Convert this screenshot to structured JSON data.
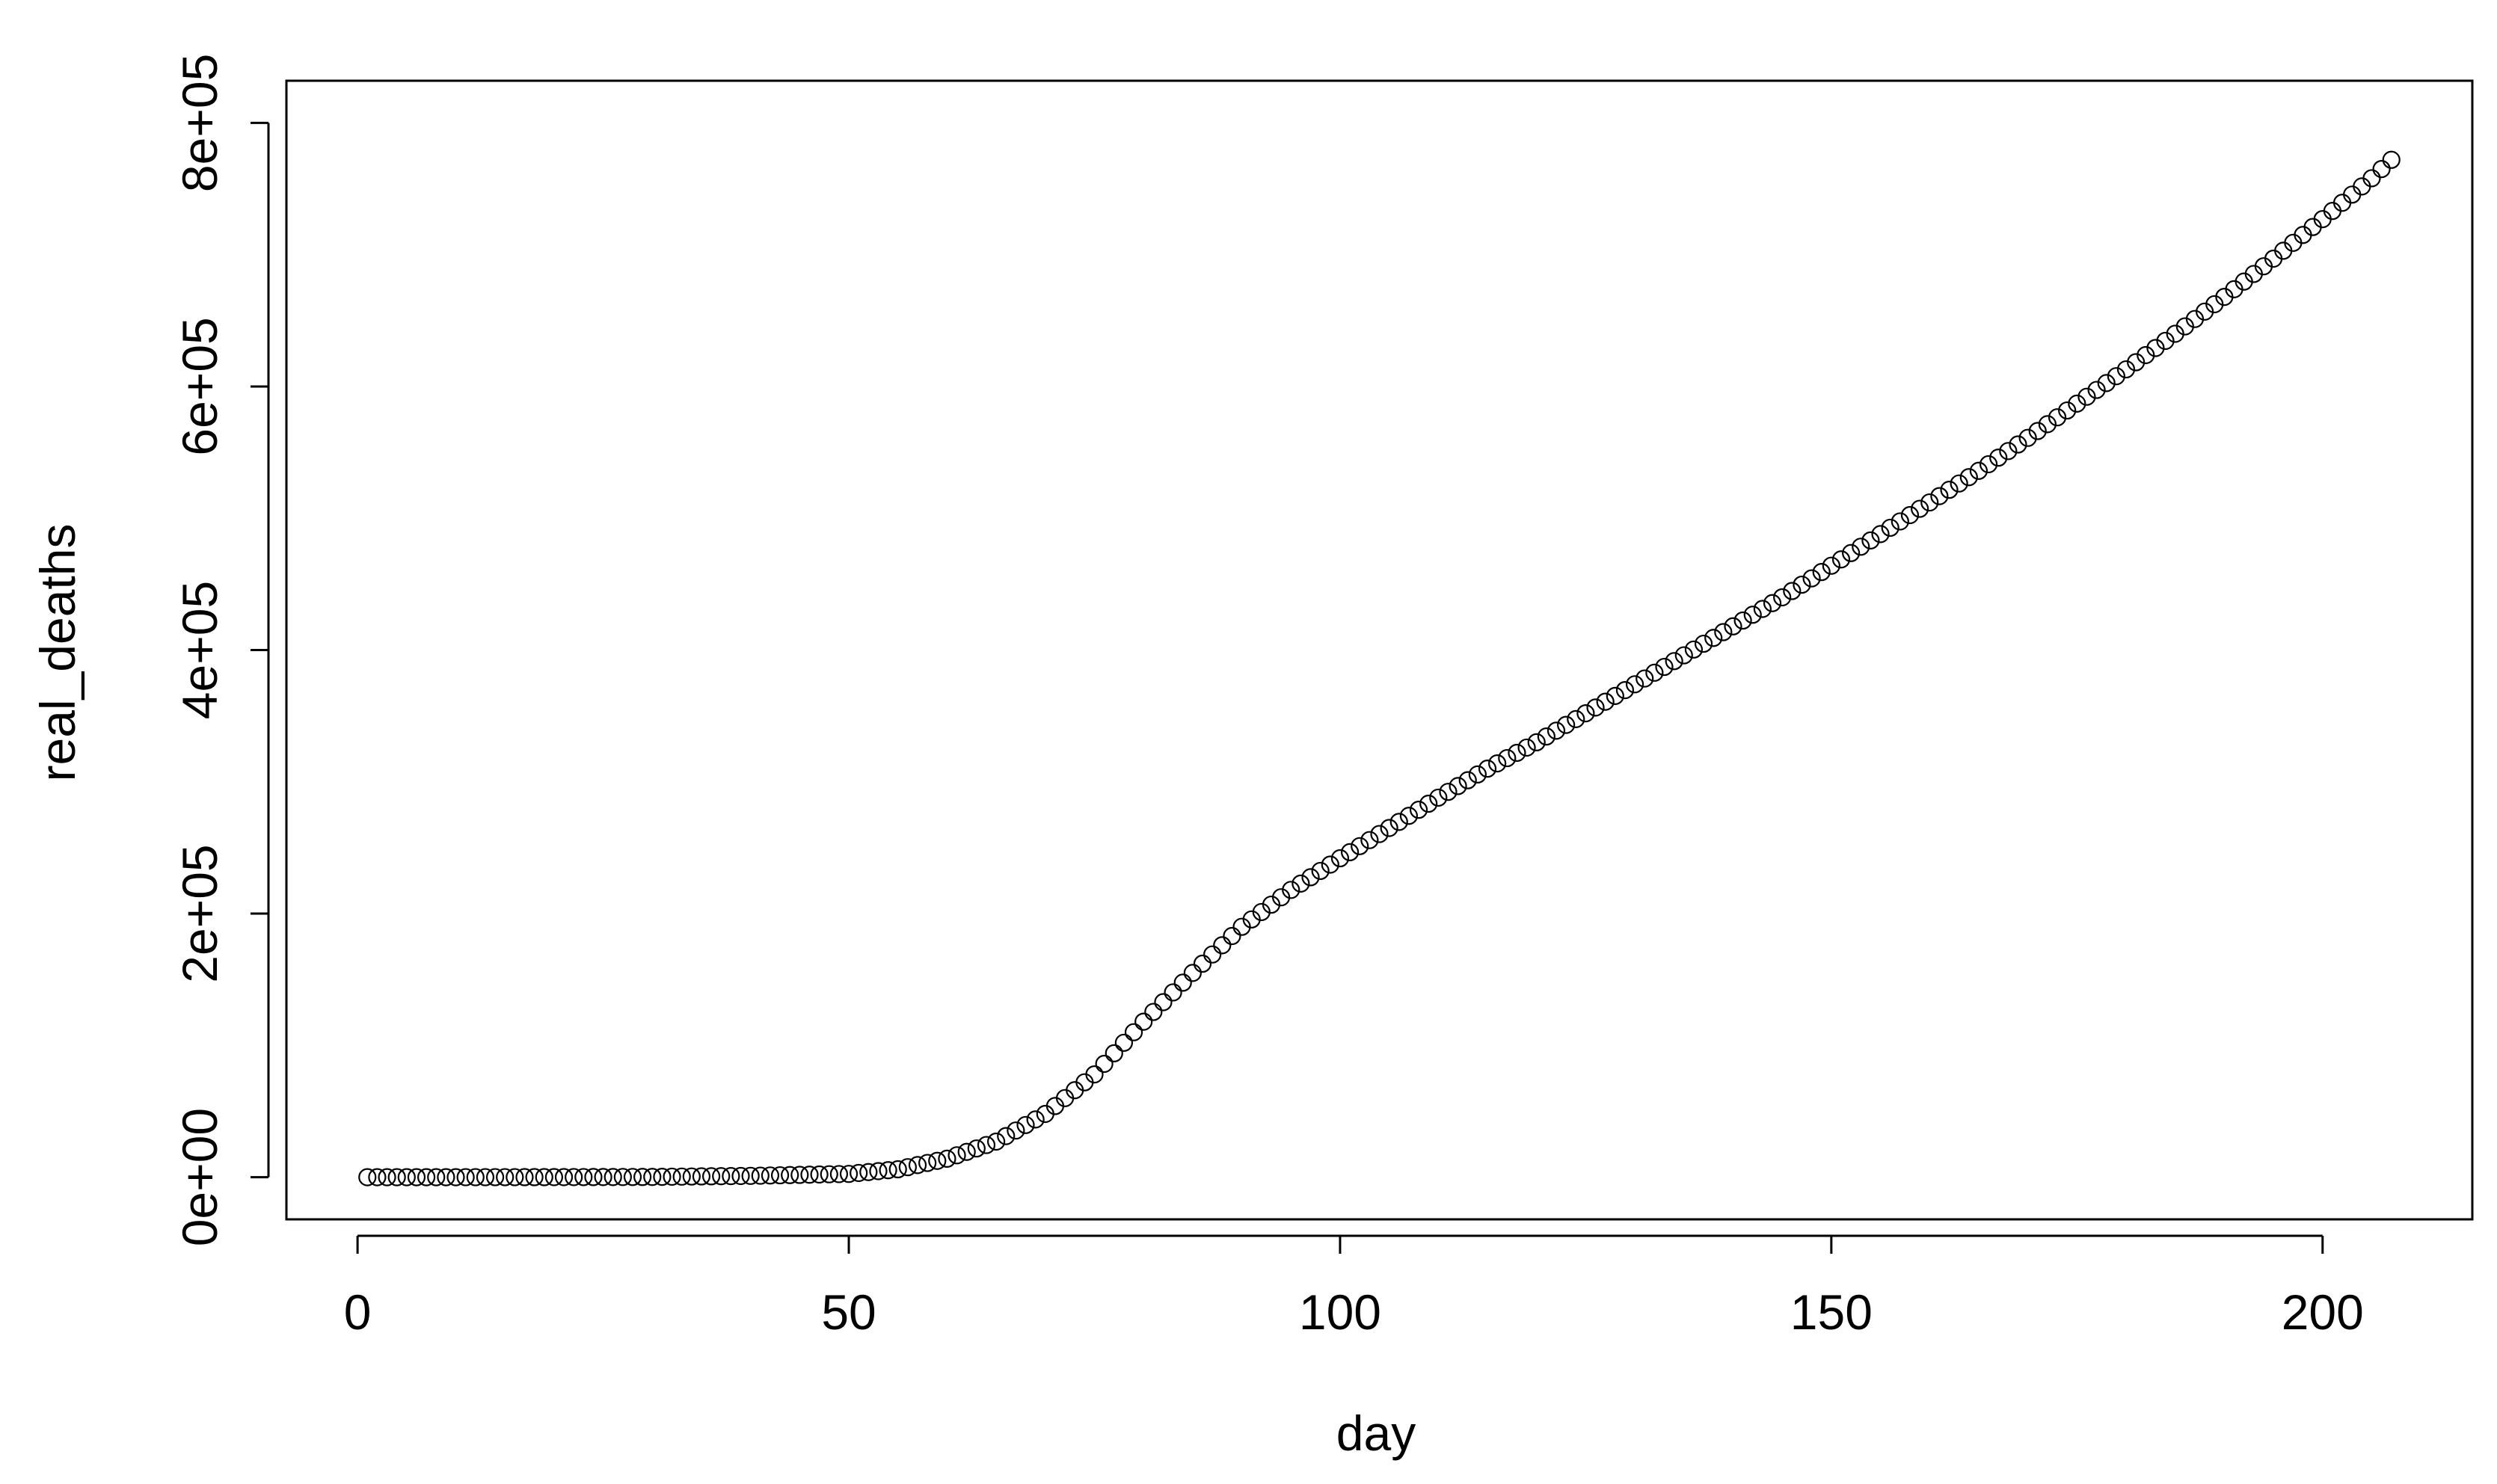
{
  "chart_data": {
    "type": "scatter",
    "xlabel": "day",
    "ylabel": "real_deaths",
    "xlim": [
      1,
      207
    ],
    "ylim": [
      0,
      800000
    ],
    "x_ticks": [
      0,
      50,
      100,
      150,
      200
    ],
    "x_tick_labels": [
      "0",
      "50",
      "100",
      "150",
      "200"
    ],
    "y_ticks": [
      0,
      200000,
      400000,
      600000,
      800000
    ],
    "y_tick_labels": [
      "0e+00",
      "2e+05",
      "4e+05",
      "6e+05",
      "8e+05"
    ],
    "grid": false,
    "legend": "none",
    "marker": "open-circle",
    "color": "#000000",
    "series": [
      {
        "x_start": 1,
        "x_end": 207,
        "x_step": 1,
        "anchor_points": [
          [
            1,
            0
          ],
          [
            10,
            0
          ],
          [
            20,
            50
          ],
          [
            30,
            200
          ],
          [
            40,
            1000
          ],
          [
            50,
            2500
          ],
          [
            55,
            6000
          ],
          [
            60,
            14000
          ],
          [
            65,
            27000
          ],
          [
            70,
            48000
          ],
          [
            75,
            78000
          ],
          [
            80,
            118000
          ],
          [
            85,
            155000
          ],
          [
            90,
            190000
          ],
          [
            95,
            218000
          ],
          [
            100,
            242000
          ],
          [
            105,
            265000
          ],
          [
            110,
            288000
          ],
          [
            115,
            310000
          ],
          [
            120,
            330000
          ],
          [
            125,
            352000
          ],
          [
            130,
            374000
          ],
          [
            135,
            396000
          ],
          [
            140,
            418000
          ],
          [
            145,
            440000
          ],
          [
            150,
            464000
          ],
          [
            155,
            488000
          ],
          [
            160,
            512000
          ],
          [
            165,
            536000
          ],
          [
            170,
            561000
          ],
          [
            175,
            587000
          ],
          [
            180,
            613000
          ],
          [
            185,
            640000
          ],
          [
            190,
            668000
          ],
          [
            195,
            697000
          ],
          [
            200,
            727000
          ],
          [
            205,
            758000
          ],
          [
            207,
            772000
          ]
        ]
      }
    ]
  }
}
